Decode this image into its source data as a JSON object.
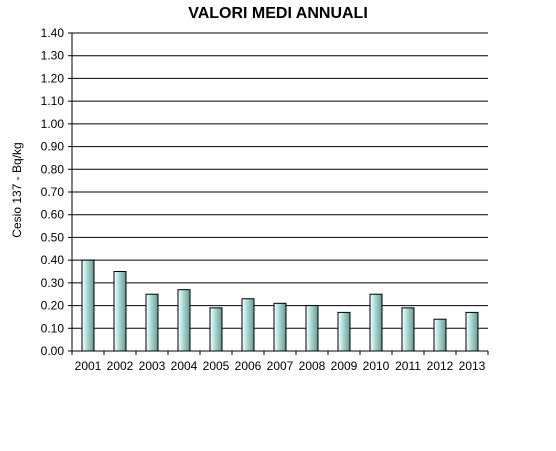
{
  "chart_data": {
    "type": "bar",
    "title": "VALORI MEDI ANNUALI",
    "xlabel": "",
    "ylabel": "Cesio 137 - Bq/kg",
    "categories": [
      "2001",
      "2002",
      "2003",
      "2004",
      "2005",
      "2006",
      "2007",
      "2008",
      "2009",
      "2010",
      "2011",
      "2012",
      "2013"
    ],
    "values": [
      0.4,
      0.35,
      0.25,
      0.27,
      0.19,
      0.23,
      0.21,
      0.2,
      0.17,
      0.25,
      0.19,
      0.14,
      0.17
    ],
    "ylim": [
      0,
      1.4
    ],
    "yticks": [
      "0.00",
      "0.10",
      "0.20",
      "0.30",
      "0.40",
      "0.50",
      "0.60",
      "0.70",
      "0.80",
      "0.90",
      "1.00",
      "1.10",
      "1.20",
      "1.30",
      "1.40"
    ],
    "grid": true,
    "legend": "none",
    "bar_color": "#a8d8d0"
  }
}
